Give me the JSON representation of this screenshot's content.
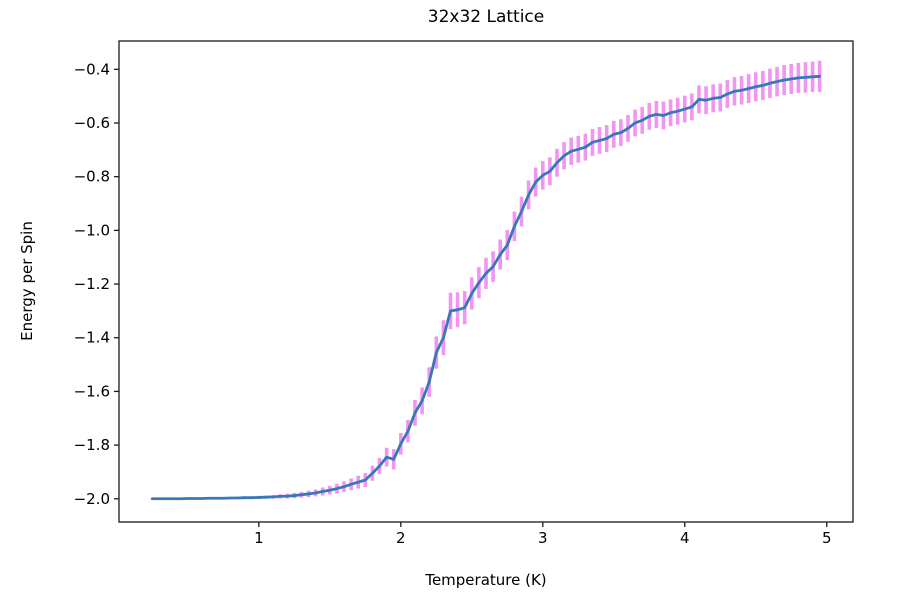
{
  "figure": {
    "title": "32x32 Lattice",
    "xlabel": "Temperature (K)",
    "ylabel": "Energy per Spin"
  },
  "chart_data": {
    "type": "line",
    "title": "32x32 Lattice",
    "xlabel": "Temperature (K)",
    "ylabel": "Energy per Spin",
    "grid": false,
    "legend": null,
    "xlim": [
      0.015,
      5.185
    ],
    "ylim": [
      -2.0865,
      -0.2945
    ],
    "x_ticks": [
      1,
      2,
      3,
      4,
      5
    ],
    "x_tick_labels": [
      "1",
      "2",
      "3",
      "4",
      "5"
    ],
    "y_ticks": [
      -0.4,
      -0.6,
      -0.8,
      -1.0,
      -1.2,
      -1.4,
      -1.6,
      -1.8,
      -2.0
    ],
    "y_tick_labels": [
      "−0.4",
      "−0.6",
      "−0.8",
      "−1.0",
      "−1.2",
      "−1.4",
      "−1.6",
      "−1.8",
      "−2.0"
    ],
    "line_color": "#3878b8",
    "errorbar_color": "#ee82ee",
    "series": [
      {
        "name": "energy-per-spin",
        "x": [
          0.25,
          0.3,
          0.35,
          0.4,
          0.45,
          0.5,
          0.55,
          0.6,
          0.65,
          0.7,
          0.75,
          0.8,
          0.85,
          0.9,
          0.95,
          1.0,
          1.05,
          1.1,
          1.15,
          1.2,
          1.25,
          1.3,
          1.35,
          1.4,
          1.45,
          1.5,
          1.55,
          1.6,
          1.65,
          1.7,
          1.75,
          1.8,
          1.85,
          1.9,
          1.95,
          2.0,
          2.05,
          2.1,
          2.15,
          2.2,
          2.25,
          2.3,
          2.35,
          2.4,
          2.45,
          2.5,
          2.55,
          2.6,
          2.65,
          2.7,
          2.75,
          2.8,
          2.85,
          2.9,
          2.95,
          3.0,
          3.05,
          3.1,
          3.15,
          3.2,
          3.25,
          3.3,
          3.35,
          3.4,
          3.45,
          3.5,
          3.55,
          3.6,
          3.65,
          3.7,
          3.75,
          3.8,
          3.85,
          3.9,
          3.95,
          4.0,
          4.05,
          4.1,
          4.15,
          4.2,
          4.25,
          4.3,
          4.35,
          4.4,
          4.45,
          4.5,
          4.55,
          4.6,
          4.65,
          4.7,
          4.75,
          4.8,
          4.85,
          4.9,
          4.95
        ],
        "y": [
          -2.0,
          -2.0,
          -2.0,
          -2.0,
          -2.0,
          -1.999,
          -1.999,
          -1.999,
          -1.998,
          -1.998,
          -1.998,
          -1.997,
          -1.997,
          -1.996,
          -1.996,
          -1.995,
          -1.994,
          -1.993,
          -1.991,
          -1.99,
          -1.988,
          -1.985,
          -1.982,
          -1.978,
          -1.973,
          -1.968,
          -1.962,
          -1.955,
          -1.946,
          -1.938,
          -1.93,
          -1.905,
          -1.878,
          -1.845,
          -1.853,
          -1.795,
          -1.748,
          -1.68,
          -1.635,
          -1.565,
          -1.455,
          -1.4,
          -1.3,
          -1.296,
          -1.288,
          -1.235,
          -1.195,
          -1.16,
          -1.135,
          -1.09,
          -1.055,
          -0.985,
          -0.93,
          -0.868,
          -0.82,
          -0.795,
          -0.78,
          -0.748,
          -0.722,
          -0.705,
          -0.698,
          -0.69,
          -0.672,
          -0.665,
          -0.658,
          -0.642,
          -0.636,
          -0.62,
          -0.6,
          -0.59,
          -0.575,
          -0.568,
          -0.572,
          -0.562,
          -0.556,
          -0.548,
          -0.54,
          -0.512,
          -0.515,
          -0.508,
          -0.505,
          -0.492,
          -0.482,
          -0.478,
          -0.472,
          -0.465,
          -0.46,
          -0.452,
          -0.446,
          -0.44,
          -0.436,
          -0.432,
          -0.43,
          -0.428,
          -0.426
        ],
        "yerr": [
          0.002,
          0.002,
          0.002,
          0.002,
          0.002,
          0.002,
          0.003,
          0.003,
          0.003,
          0.003,
          0.004,
          0.004,
          0.004,
          0.005,
          0.005,
          0.006,
          0.006,
          0.007,
          0.008,
          0.009,
          0.01,
          0.011,
          0.012,
          0.013,
          0.015,
          0.016,
          0.018,
          0.02,
          0.022,
          0.024,
          0.026,
          0.028,
          0.03,
          0.035,
          0.038,
          0.04,
          0.042,
          0.048,
          0.05,
          0.055,
          0.06,
          0.065,
          0.068,
          0.065,
          0.062,
          0.06,
          0.058,
          0.058,
          0.057,
          0.056,
          0.056,
          0.055,
          0.055,
          0.054,
          0.054,
          0.053,
          0.052,
          0.052,
          0.051,
          0.051,
          0.05,
          0.05,
          0.05,
          0.05,
          0.05,
          0.05,
          0.05,
          0.05,
          0.05,
          0.05,
          0.05,
          0.05,
          0.052,
          0.05,
          0.05,
          0.05,
          0.05,
          0.052,
          0.052,
          0.052,
          0.052,
          0.052,
          0.053,
          0.053,
          0.054,
          0.054,
          0.054,
          0.055,
          0.055,
          0.056,
          0.056,
          0.056,
          0.057,
          0.057,
          0.058
        ]
      }
    ]
  }
}
